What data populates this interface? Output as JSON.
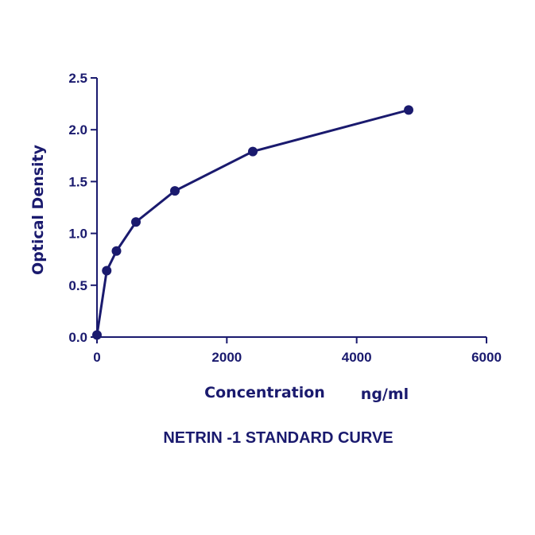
{
  "chart_data": {
    "type": "line",
    "title": "NETRIN -1 STANDARD CURVE",
    "xlabel": "Concentration",
    "xunit": "ng/ml",
    "ylabel": "Optical Density",
    "xlim": [
      0,
      6000
    ],
    "ylim": [
      0,
      2.5
    ],
    "x_ticks": [
      0,
      2000,
      4000,
      6000
    ],
    "x_tick_labels": [
      "0",
      "2000",
      "4000",
      "6000"
    ],
    "y_ticks": [
      0,
      0.5,
      1.0,
      1.5,
      2.0,
      2.5
    ],
    "y_tick_labels": [
      "0.0",
      "0.5",
      "1.0",
      "1.5",
      "2.0",
      "2.5"
    ],
    "series": [
      {
        "name": "Netrin-1 standard",
        "x": [
          0,
          150,
          300,
          600,
          1200,
          2400,
          4800
        ],
        "y": [
          0.02,
          0.64,
          0.83,
          1.11,
          1.41,
          1.79,
          2.19
        ]
      }
    ],
    "grid": false,
    "color": "#1a1a6e"
  }
}
